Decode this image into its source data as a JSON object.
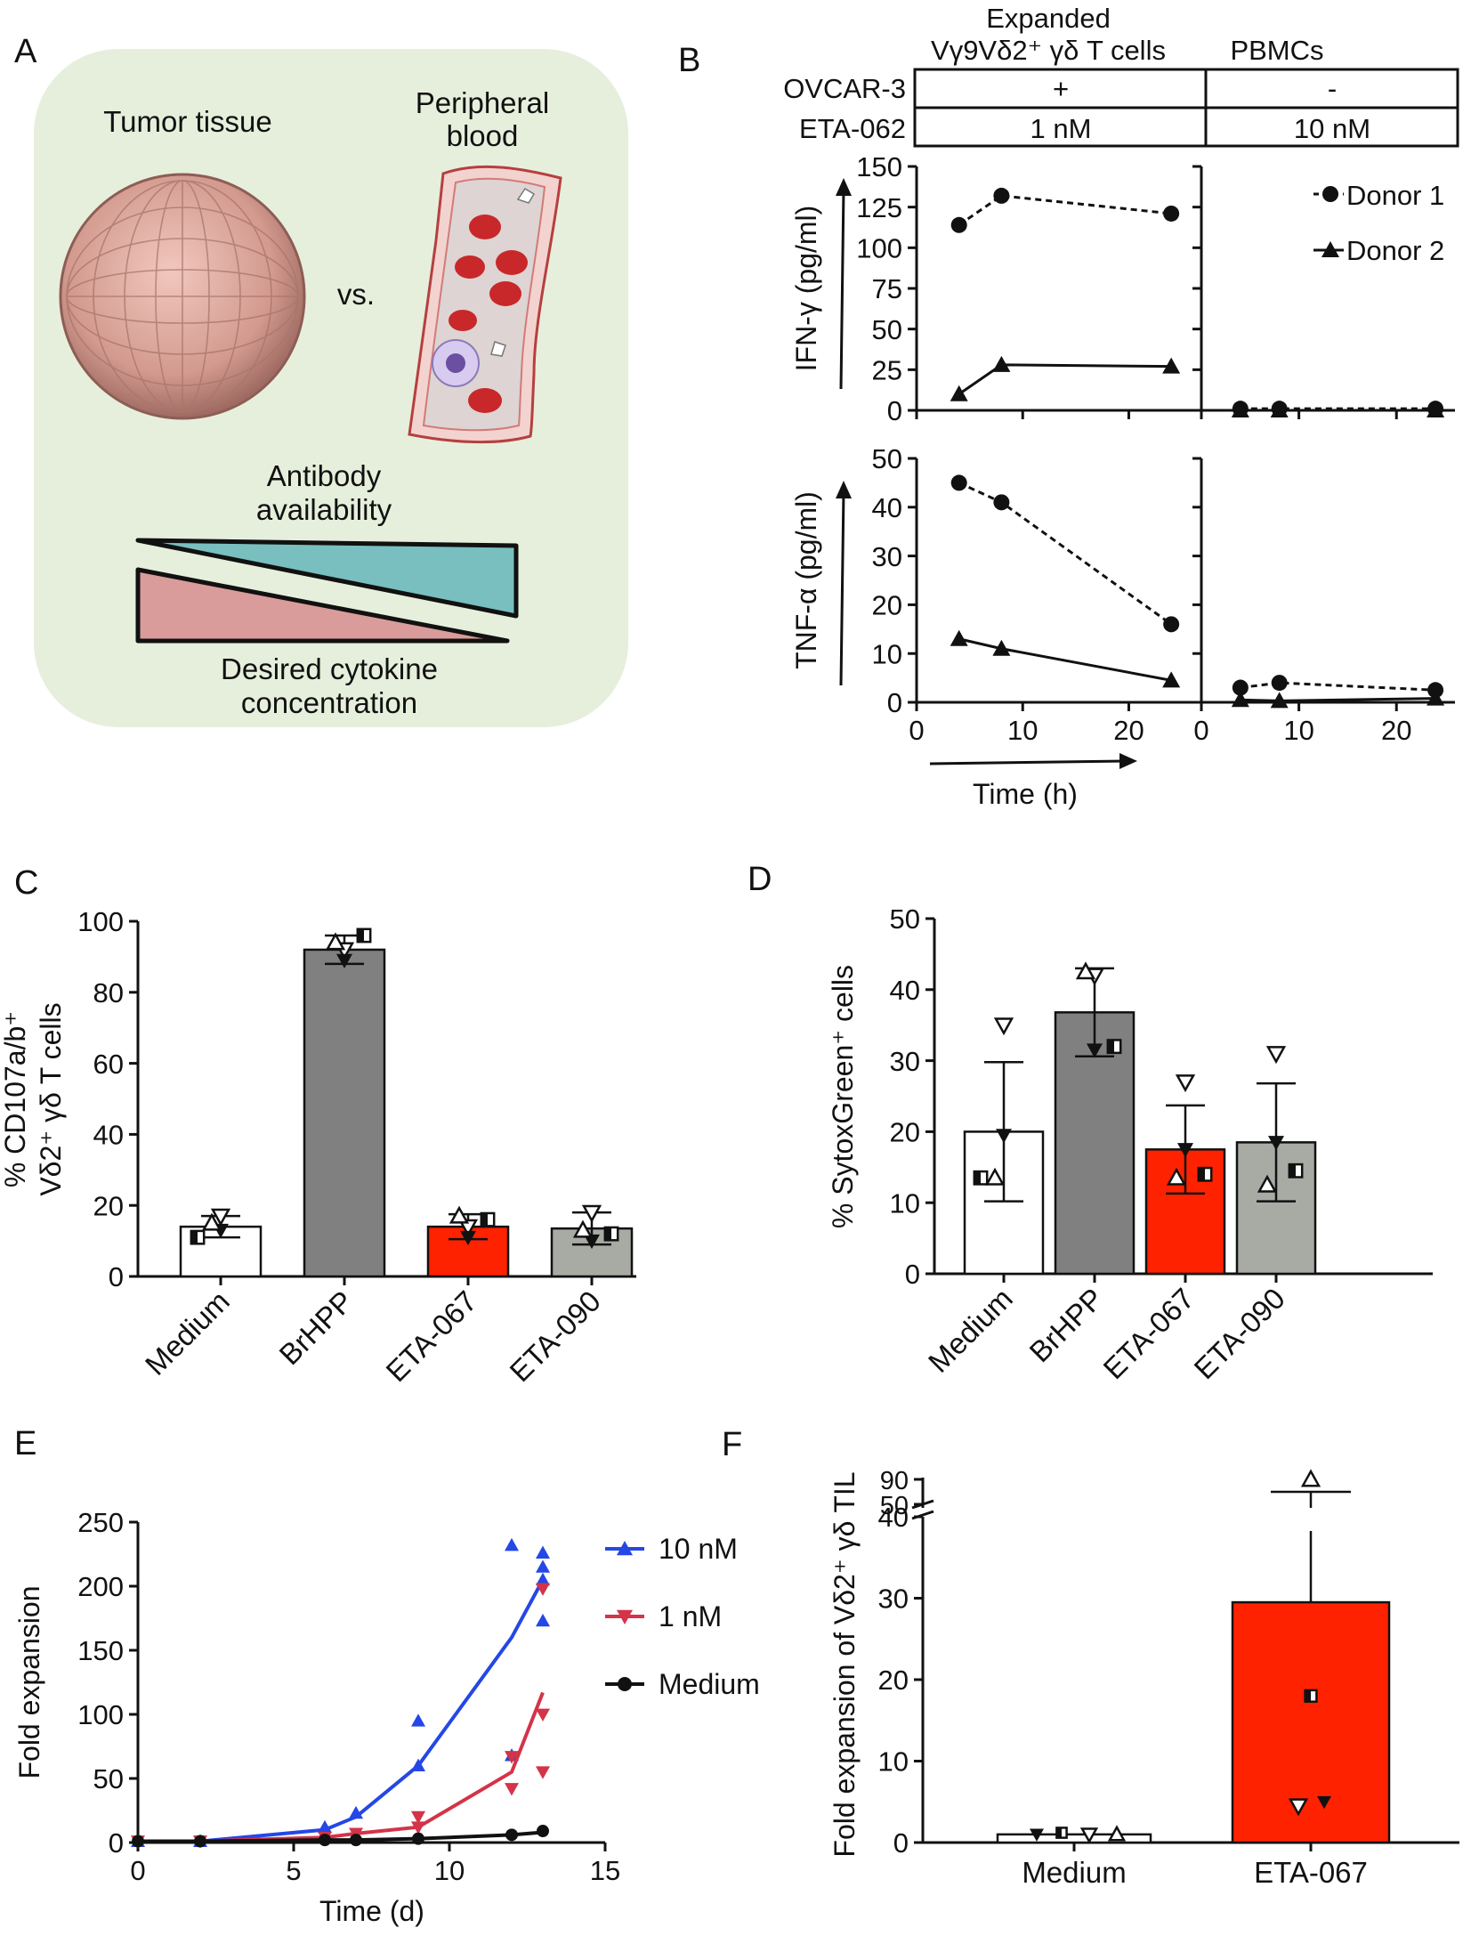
{
  "panel_letters": [
    "A",
    "B",
    "C",
    "D",
    "E",
    "F"
  ],
  "colors": {
    "panelA_bg": "#e6efdc",
    "availability_wedge": "#79bfbf",
    "cytokine_wedge": "#d99c9a",
    "tumor": "#d8a49a",
    "vessel": "#f0c7c3",
    "rbc": "#c8282a",
    "bar_white": "#ffffff",
    "bar_dark": "#808080",
    "bar_red": "#ff2200",
    "bar_gray": "#a7aba4",
    "line_blue": "#2547e6",
    "line_red": "#d43348",
    "line_black": "#111111"
  },
  "panel_a": {
    "tumor_label": "Tumor tissue",
    "blood_label_line1": "Peripheral",
    "blood_label_line2": "blood",
    "vs_label": "vs.",
    "availability_line1": "Antibody",
    "availability_line2": "availability",
    "cytokine_line1": "Desired cytokine",
    "cytokine_line2": "concentration"
  },
  "panel_b": {
    "col1_header_line1": "Expanded",
    "col1_header_line2": "Vγ9Vδ2⁺ γδ T cells",
    "col2_header": "PBMCs",
    "row1_label": "OVCAR-3",
    "row2_label": "ETA-062",
    "row1_values": [
      "+",
      "-"
    ],
    "row2_values": [
      "1 nM",
      "10 nM"
    ],
    "x_label": "Time (h)",
    "legend": [
      "Donor 1",
      "Donor 2"
    ]
  },
  "chart_data": [
    {
      "id": "B-IFN",
      "type": "line",
      "title": "",
      "ylabel": "IFN-γ (pg/ml)",
      "xlabel": "Time (h)",
      "ylim": [
        0,
        150
      ],
      "xlim": [
        0,
        26
      ],
      "yticks": [
        0,
        25,
        50,
        75,
        100,
        125,
        150
      ],
      "xticks": [
        0,
        10,
        20
      ],
      "facets": [
        {
          "name": "Expanded Vγ9Vδ2⁺ γδ T cells",
          "series": [
            {
              "name": "Donor 1",
              "x": [
                4,
                8,
                24
              ],
              "y": [
                114,
                132,
                121
              ]
            },
            {
              "name": "Donor 2",
              "x": [
                4,
                8,
                24
              ],
              "y": [
                10,
                28,
                27
              ]
            }
          ]
        },
        {
          "name": "PBMCs",
          "series": [
            {
              "name": "Donor 1",
              "x": [
                4,
                8,
                24
              ],
              "y": [
                1,
                1,
                1
              ]
            },
            {
              "name": "Donor 2",
              "x": [
                4,
                8,
                24
              ],
              "y": [
                0,
                0,
                0
              ]
            }
          ]
        }
      ]
    },
    {
      "id": "B-TNF",
      "type": "line",
      "title": "",
      "ylabel": "TNF-α (pg/ml)",
      "xlabel": "Time (h)",
      "ylim": [
        0,
        50
      ],
      "xlim": [
        0,
        26
      ],
      "yticks": [
        0,
        10,
        20,
        30,
        40,
        50
      ],
      "xticks": [
        0,
        10,
        20
      ],
      "facets": [
        {
          "name": "Expanded Vγ9Vδ2⁺ γδ T cells",
          "series": [
            {
              "name": "Donor 1",
              "x": [
                4,
                8,
                24
              ],
              "y": [
                45,
                41,
                16
              ]
            },
            {
              "name": "Donor 2",
              "x": [
                4,
                8,
                24
              ],
              "y": [
                13,
                11,
                4.5
              ]
            }
          ]
        },
        {
          "name": "PBMCs",
          "series": [
            {
              "name": "Donor 1",
              "x": [
                4,
                8,
                24
              ],
              "y": [
                3,
                4,
                2.5
              ]
            },
            {
              "name": "Donor 2",
              "x": [
                4,
                8,
                24
              ],
              "y": [
                0.5,
                0.3,
                0.8
              ]
            }
          ]
        }
      ]
    },
    {
      "id": "C",
      "type": "bar",
      "title": "",
      "ylabel_line1": "% CD107a/b⁺",
      "ylabel_line2": "Vδ2⁺ γδ T cells",
      "xlabel": "",
      "categories": [
        "Medium",
        "BrHPP",
        "ETA-067",
        "ETA-090"
      ],
      "values": [
        14,
        92,
        14,
        13.5
      ],
      "errors": [
        3,
        4,
        3.5,
        4.5
      ],
      "ylim": [
        0,
        100
      ],
      "yticks": [
        0,
        20,
        40,
        60,
        80,
        100
      ],
      "points": {
        "open_down_triangle": [
          17,
          92,
          14,
          18
        ],
        "filled_down_triangle": [
          13,
          89,
          11,
          10
        ],
        "open_up_triangle": [
          15,
          94,
          17,
          13
        ],
        "half_square": [
          11,
          96,
          16,
          12
        ]
      }
    },
    {
      "id": "D",
      "type": "bar",
      "title": "",
      "ylabel": "% SytoxGreen⁺ cells",
      "xlabel": "",
      "categories": [
        "Medium",
        "BrHPP",
        "ETA-067",
        "ETA-090"
      ],
      "values": [
        20,
        36.8,
        17.5,
        18.5
      ],
      "errors": [
        9.8,
        6.2,
        6.2,
        8.3
      ],
      "ylim": [
        0,
        50
      ],
      "yticks": [
        0,
        10,
        20,
        30,
        40,
        50
      ],
      "points": {
        "open_down_triangle": [
          35,
          42,
          27,
          31
        ],
        "filled_down_triangle": [
          19.5,
          31.5,
          17.5,
          18.5
        ],
        "open_up_triangle": [
          13.5,
          42.5,
          13.5,
          12.5
        ],
        "half_square": [
          13.5,
          32,
          14,
          14.5
        ]
      }
    },
    {
      "id": "E",
      "type": "line",
      "title": "",
      "ylabel": "Fold expansion",
      "xlabel": "Time (d)",
      "ylim": [
        0,
        250
      ],
      "xlim": [
        0,
        15
      ],
      "yticks": [
        0,
        50,
        100,
        150,
        200,
        250
      ],
      "xticks": [
        0,
        5,
        10,
        15
      ],
      "series": [
        {
          "name": "10 nM",
          "marker": "up-triangle",
          "x": [
            0,
            2,
            6,
            7,
            9,
            12,
            13
          ],
          "y": [
            1,
            1,
            10,
            20,
            60,
            160,
            205
          ],
          "points": [
            [
              0,
              1
            ],
            [
              2,
              1
            ],
            [
              6,
              12
            ],
            [
              7,
              23
            ],
            [
              9,
              95
            ],
            [
              9,
              60
            ],
            [
              12,
              232
            ],
            [
              12,
              68
            ],
            [
              13,
              226
            ],
            [
              13,
              215
            ],
            [
              13,
              205
            ],
            [
              13,
              173
            ]
          ]
        },
        {
          "name": "1 nM",
          "marker": "down-triangle",
          "x": [
            0,
            2,
            6,
            7,
            9,
            12,
            13
          ],
          "y": [
            1,
            1,
            4,
            7,
            12,
            55,
            117
          ],
          "points": [
            [
              0,
              1
            ],
            [
              2,
              1
            ],
            [
              6,
              4
            ],
            [
              7,
              7
            ],
            [
              9,
              20
            ],
            [
              9,
              12
            ],
            [
              12,
              67
            ],
            [
              12,
              42
            ],
            [
              13,
              198
            ],
            [
              13,
              100
            ],
            [
              13,
              55
            ]
          ]
        },
        {
          "name": "Medium",
          "marker": "circle",
          "x": [
            0,
            2,
            6,
            7,
            9,
            12,
            13
          ],
          "y": [
            1,
            1,
            2,
            2,
            3,
            6,
            8
          ],
          "points": [
            [
              0,
              1
            ],
            [
              2,
              1
            ],
            [
              6,
              2
            ],
            [
              7,
              2
            ],
            [
              9,
              3
            ],
            [
              12,
              6
            ],
            [
              13,
              9
            ]
          ]
        }
      ]
    },
    {
      "id": "F",
      "type": "bar",
      "title": "",
      "ylabel": "Fold expansion of Vδ2⁺ γδ TIL",
      "xlabel": "",
      "categories": [
        "Medium",
        "ETA-067"
      ],
      "values": [
        1,
        29.5
      ],
      "error_upper": [
        0.1,
        60
      ],
      "ylim_lower": [
        0,
        40
      ],
      "ylim_upper_break": [
        50,
        90
      ],
      "yticks_lower": [
        0,
        10,
        20,
        30,
        40
      ],
      "yticks_upper": [
        50,
        90
      ],
      "points": {
        "Medium": {
          "filled_down_triangle": 1,
          "half_square": 1.2,
          "open_down_triangle": 1,
          "open_up_triangle": 1
        },
        "ETA-067": {
          "open_up_triangle": 90,
          "half_square": 18,
          "open_down_triangle": 4.5,
          "filled_down_triangle": 5
        }
      }
    }
  ]
}
